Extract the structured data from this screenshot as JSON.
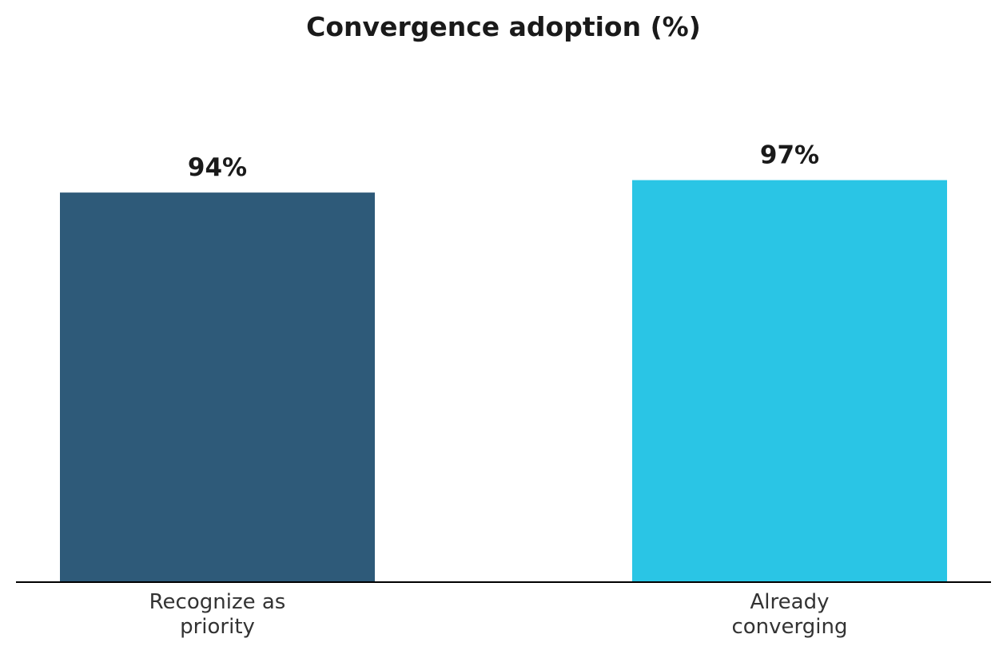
{
  "chart_data": {
    "type": "bar",
    "title": "Convergence adoption (%)",
    "categories": [
      "Recognize as priority",
      "Already converging"
    ],
    "category_lines": [
      [
        "Recognize as",
        "priority"
      ],
      [
        "Already",
        "converging"
      ]
    ],
    "values": [
      94,
      97
    ],
    "value_labels": [
      "94%",
      "97%"
    ],
    "colors": [
      "#2e5a79",
      "#2ac5e5"
    ],
    "ylim": [
      0,
      100
    ],
    "xlabel": "",
    "ylabel": "",
    "grid": false,
    "legend": "none"
  }
}
